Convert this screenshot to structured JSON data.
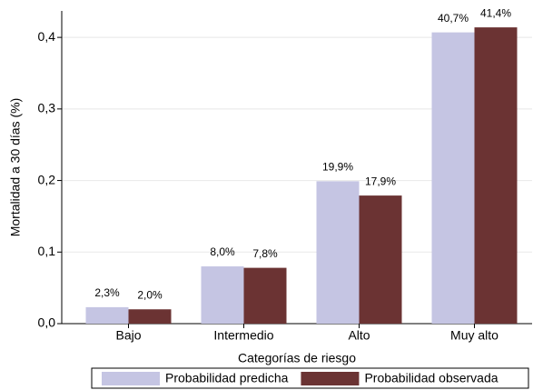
{
  "chart_data": {
    "type": "bar",
    "x_label": "Categorías de riesgo",
    "y_label": "Mortalidad a 30 días (%)",
    "categories": [
      "Bajo",
      "Intermedio",
      "Alto",
      "Muy alto"
    ],
    "series": [
      {
        "name": "Probabilidad predicha",
        "color": "#c5c5e3",
        "values": [
          0.023,
          0.08,
          0.199,
          0.407
        ],
        "value_labels": [
          "2,3%",
          "8,0%",
          "19,9%",
          "40,7%"
        ]
      },
      {
        "name": "Probabilidad observada",
        "color": "#6b3333",
        "values": [
          0.02,
          0.078,
          0.179,
          0.414
        ],
        "value_labels": [
          "2,0%",
          "7,8%",
          "17,9%",
          "41,4%"
        ]
      }
    ],
    "ylim": [
      0,
      0.437
    ],
    "yticks": [
      {
        "value": 0,
        "label": "0,0"
      },
      {
        "value": 0.1,
        "label": "0,1"
      },
      {
        "value": 0.2,
        "label": "0,2"
      },
      {
        "value": 0.3,
        "label": "0,3"
      },
      {
        "value": 0.4,
        "label": "0,4"
      }
    ],
    "grid": true,
    "legend": "bottom"
  }
}
